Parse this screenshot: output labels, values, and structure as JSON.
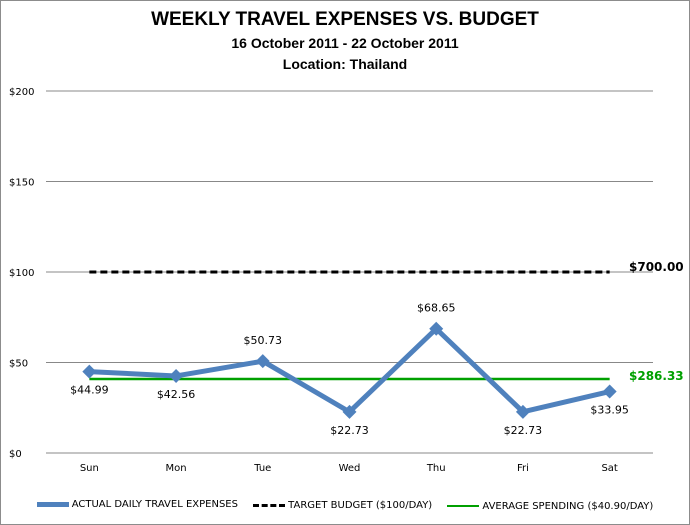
{
  "chart_data": {
    "type": "line",
    "title": "WEEKLY TRAVEL EXPENSES VS. BUDGET",
    "subtitle": "16 October 2011 - 22 October 2011",
    "subtitle2": "Location: Thailand",
    "categories": [
      "Sun",
      "Mon",
      "Tue",
      "Wed",
      "Thu",
      "Fri",
      "Sat"
    ],
    "ylim": [
      0,
      200
    ],
    "yticks": [
      "$0",
      "$50",
      "$100",
      "$150",
      "$200"
    ],
    "ytick_values": [
      0,
      50,
      100,
      150,
      200
    ],
    "grid": true,
    "legend_position": "bottom",
    "series": [
      {
        "name": "ACTUAL DAILY TRAVEL EXPENSES",
        "values": [
          44.99,
          42.56,
          50.73,
          22.73,
          68.65,
          22.73,
          33.95
        ],
        "labels": [
          "$44.99",
          "$42.56",
          "$50.73",
          "$22.73",
          "$68.65",
          "$22.73",
          "$33.95"
        ],
        "color": "#4f81bd",
        "marker": "diamond"
      },
      {
        "name": "TARGET BUDGET ($100/DAY)",
        "values": [
          100,
          100,
          100,
          100,
          100,
          100,
          100
        ],
        "color": "#000000",
        "style": "dashed",
        "end_label": "$700.00"
      },
      {
        "name": "AVERAGE SPENDING ($40.90/DAY)",
        "values": [
          40.9,
          40.9,
          40.9,
          40.9,
          40.9,
          40.9,
          40.9
        ],
        "color": "#00a000",
        "end_label": "$286.33"
      }
    ]
  }
}
